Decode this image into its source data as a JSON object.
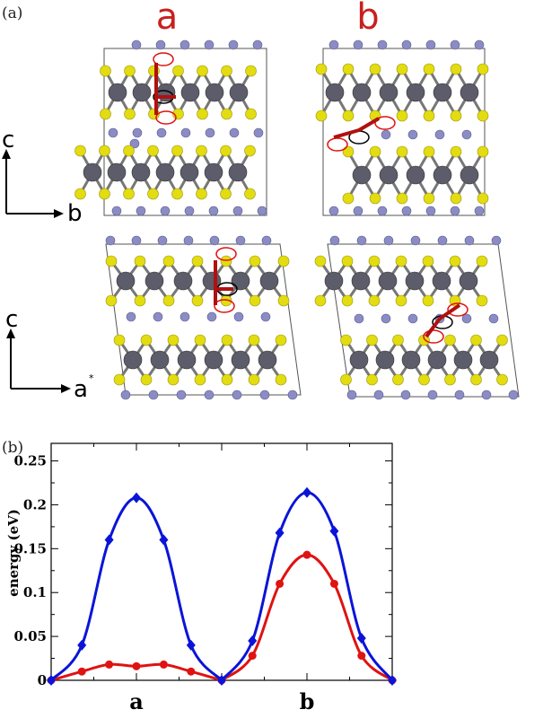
{
  "panel_a": {
    "tag": "(a)",
    "column_labels": [
      "a",
      "b"
    ],
    "axis_top": {
      "vertical": "c",
      "horizontal": "b"
    },
    "axis_bottom": {
      "vertical": "c",
      "horizontal": "a",
      "horizontal_mark": "*"
    }
  },
  "panel_b": {
    "tag": "(b)"
  },
  "colors": {
    "metal_atom": "#5c5c6a",
    "chalcogen_atom": "#e3dc10",
    "intercalant_atom": "#8c8cc4",
    "arrow": "#b01010",
    "marker_red": "#e01010",
    "marker_black": "#000000",
    "curve_blue": "#0a14d8",
    "curve_red": "#e01212"
  },
  "chart_data": {
    "type": "line",
    "ylabel": "energy (eV)",
    "xlabel": "",
    "ylim": [
      0,
      0.27
    ],
    "xlim": [
      0,
      2
    ],
    "yticks": [
      0,
      0.05,
      0.1,
      0.15,
      0.2,
      0.25
    ],
    "ytick_labels": [
      "0",
      "0.05",
      "0.1",
      "0.15",
      "0.2",
      "0.25"
    ],
    "categories": [
      "a",
      "b"
    ],
    "category_x": [
      0.5,
      1.5
    ],
    "series": [
      {
        "color": "blue",
        "marker": "diamond",
        "x": [
          0,
          0.18,
          0.34,
          0.5,
          0.66,
          0.82,
          1.0,
          1.18,
          1.34,
          1.5,
          1.66,
          1.82,
          2.0
        ],
        "y": [
          0,
          0.04,
          0.16,
          0.208,
          0.16,
          0.04,
          0,
          0.045,
          0.168,
          0.214,
          0.17,
          0.048,
          0
        ]
      },
      {
        "color": "red",
        "marker": "circle",
        "x": [
          0,
          0.18,
          0.34,
          0.5,
          0.66,
          0.82,
          1.0,
          1.18,
          1.34,
          1.5,
          1.66,
          1.82,
          2.0
        ],
        "y": [
          0,
          0.01,
          0.018,
          0.016,
          0.018,
          0.01,
          0,
          0.028,
          0.11,
          0.143,
          0.11,
          0.028,
          0
        ]
      }
    ]
  }
}
